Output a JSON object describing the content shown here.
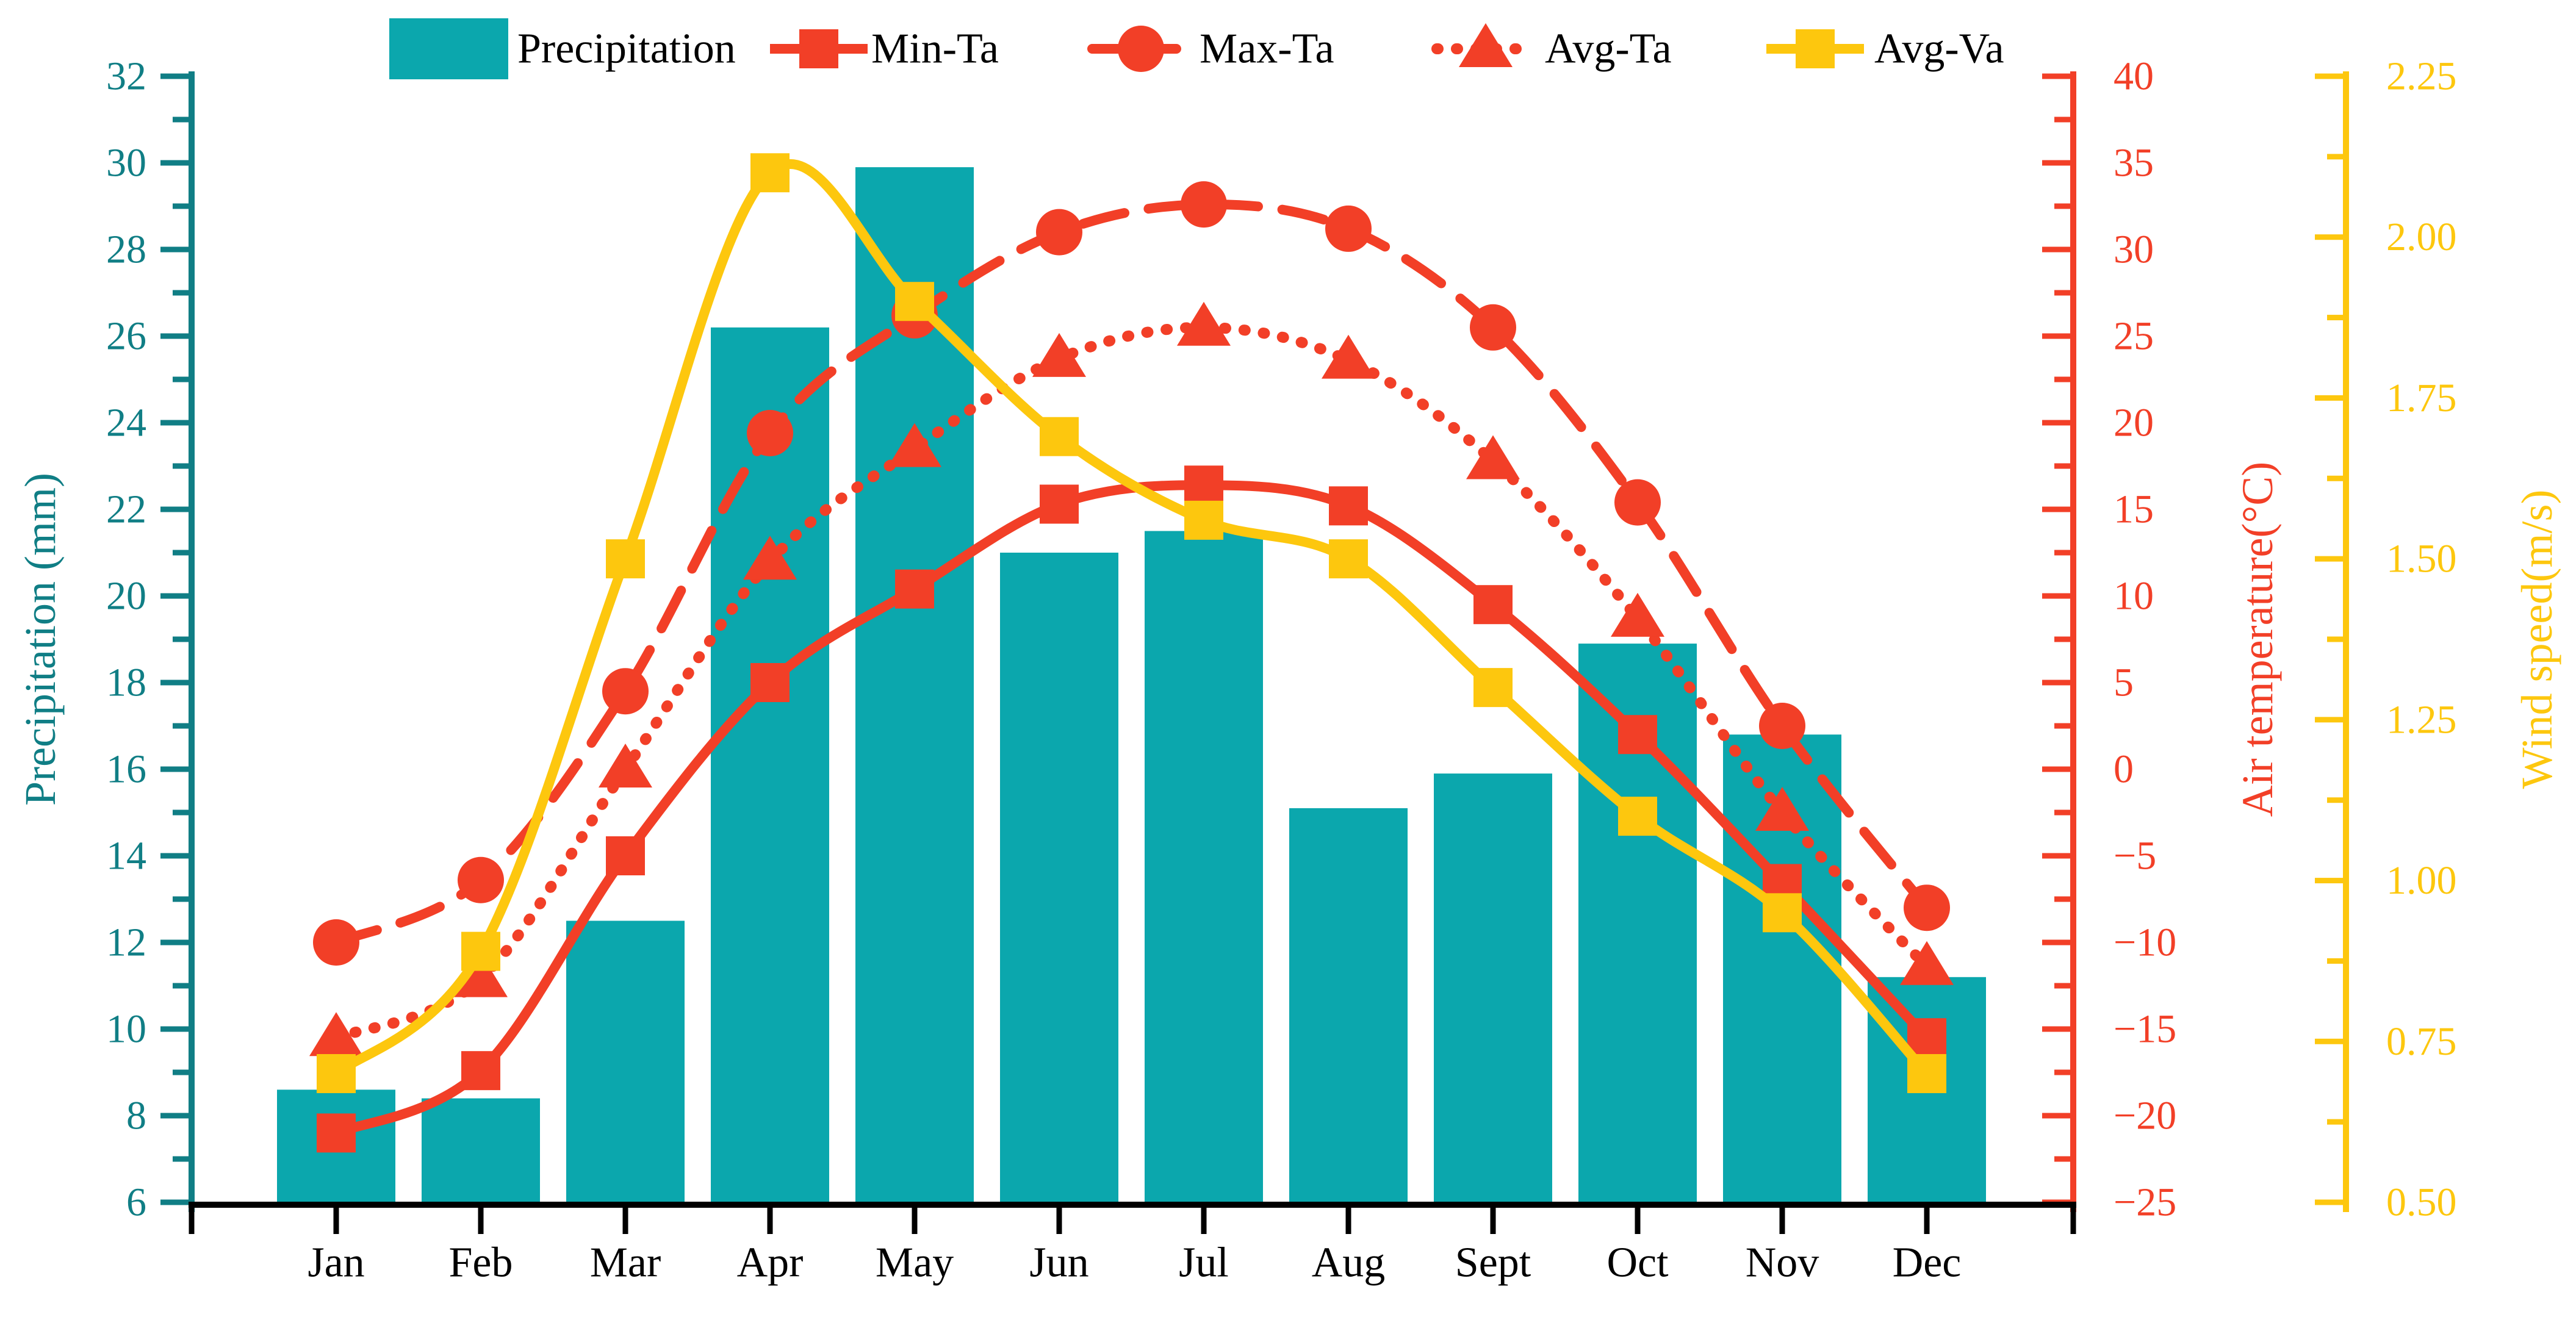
{
  "chart_data": {
    "type": "composite-bar-line",
    "categories": [
      "Jan",
      "Feb",
      "Mar",
      "Apr",
      "May",
      "Jun",
      "Jul",
      "Aug",
      "Sept",
      "Oct",
      "Nov",
      "Dec"
    ],
    "series": [
      {
        "name": "Precipitation",
        "type": "bar",
        "axis": "precipitation",
        "color": "#0ba7ad",
        "values": [
          8.6,
          8.4,
          12.5,
          26.2,
          29.9,
          21.0,
          21.5,
          15.1,
          15.9,
          18.9,
          16.8,
          11.2
        ]
      },
      {
        "name": "Max-Ta",
        "type": "line",
        "axis": "temperature",
        "color": "#f23f27",
        "marker": "circle",
        "line_style": "dashed",
        "values": [
          -10,
          -6.4,
          4.5,
          19.4,
          26.2,
          31.0,
          32.6,
          31.2,
          25.5,
          15.4,
          2.5,
          -8
        ]
      },
      {
        "name": "Avg-Ta",
        "type": "line",
        "axis": "temperature",
        "color": "#f23f27",
        "marker": "triangle",
        "line_style": "dotted",
        "values": [
          -15.5,
          -12.1,
          0,
          12,
          18.5,
          23.7,
          25.5,
          23.6,
          17.8,
          8.7,
          -2.5,
          -11.4
        ]
      },
      {
        "name": "Min-Ta",
        "type": "line",
        "axis": "temperature",
        "color": "#f23f27",
        "marker": "square",
        "line_style": "solid",
        "values": [
          -21,
          -17.4,
          -5,
          5,
          10.4,
          15.3,
          16.4,
          15.2,
          9.5,
          2,
          -6.6,
          -15.5
        ]
      },
      {
        "name": "Avg-Va",
        "type": "line",
        "axis": "wind",
        "color": "#fdc70e",
        "marker": "square",
        "line_style": "solid",
        "values": [
          0.7,
          0.89,
          1.5,
          2.1,
          1.9,
          1.69,
          1.56,
          1.5,
          1.3,
          1.1,
          0.95,
          0.7
        ]
      }
    ],
    "axes": {
      "precipitation": {
        "label": "Precipitation (mm)",
        "color": "#107e85",
        "min": 6,
        "max": 32,
        "major_step": 2,
        "minor_step": 1,
        "side": "left",
        "decimals": 0
      },
      "temperature": {
        "label": "Air temperature(°C)",
        "color": "#f23f27",
        "min": -25,
        "max": 40,
        "major_step": 5,
        "minor_step": 2.5,
        "side": "right",
        "decimals": 0
      },
      "wind": {
        "label": "Wind speed(m/s)",
        "color": "#fdc70e",
        "min": 0.5,
        "max": 2.25,
        "major_step": 0.25,
        "minor_step": 0.125,
        "side": "far-right",
        "decimals": 2
      }
    },
    "legend": {
      "position": "top",
      "entries": [
        {
          "label": "Precipitation",
          "swatch": "rect",
          "color": "#0ba7ad"
        },
        {
          "label": "Min-Ta",
          "swatch": "line-square",
          "style": "solid",
          "color": "#f23f27"
        },
        {
          "label": "Max-Ta",
          "swatch": "line-circle",
          "style": "dashed",
          "color": "#f23f27"
        },
        {
          "label": "Avg-Ta",
          "swatch": "line-triangle",
          "style": "dotted",
          "color": "#f23f27"
        },
        {
          "label": "Avg-Va",
          "swatch": "line-square",
          "style": "solid",
          "color": "#fdc70e"
        }
      ]
    },
    "grid": "off",
    "text_color": "#000000"
  }
}
